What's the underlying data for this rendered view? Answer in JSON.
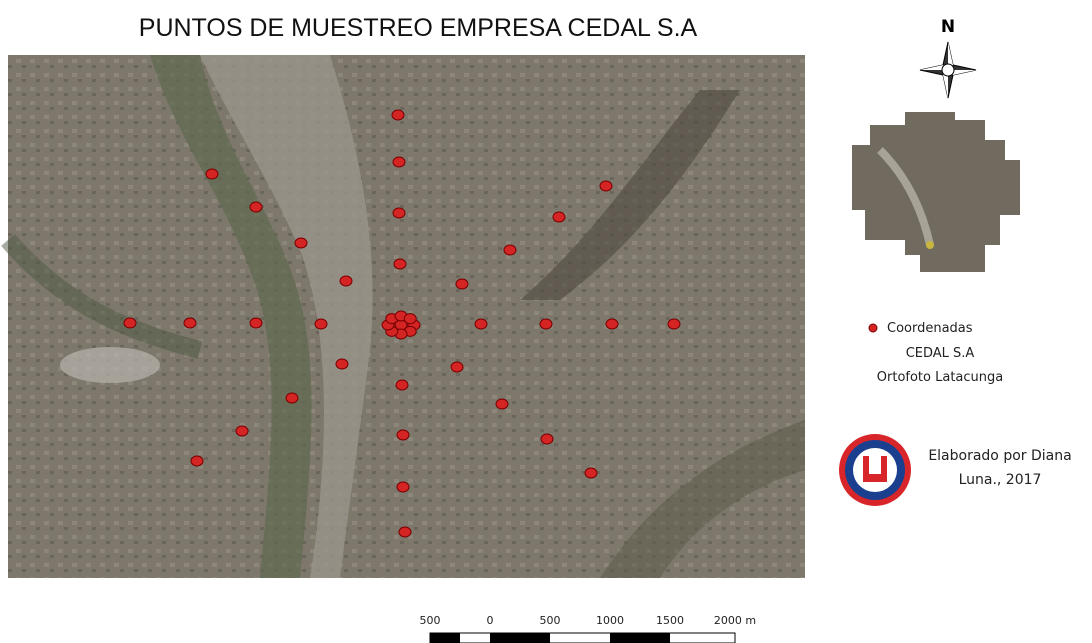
{
  "title": "PUNTOS DE MUESTREO EMPRESA CEDAL S.A",
  "north": "N",
  "legend": {
    "item": "Coordenadas",
    "line2": "CEDAL S.A",
    "line3": "Ortofoto Latacunga"
  },
  "credit": {
    "line1": "Elaborado por Diana",
    "line2": "Luna., 2017"
  },
  "scale_bar": {
    "labels": [
      "500",
      "0",
      "500",
      "1000",
      "1500",
      "2000 m"
    ]
  }
}
